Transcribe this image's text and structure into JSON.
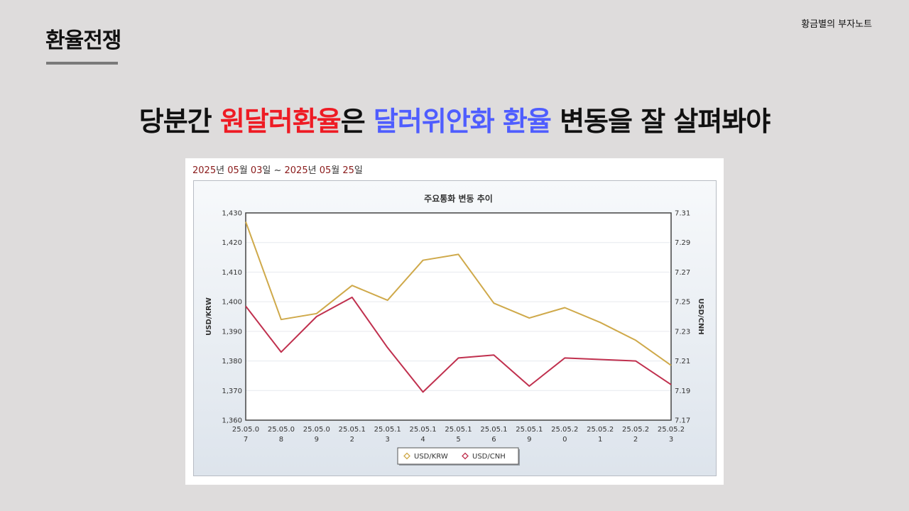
{
  "slide": {
    "title": "환율전쟁",
    "brand": "황금별의 부자노트",
    "headline": {
      "part1": "당분간 ",
      "part2": "원달러환율",
      "part3": "은 ",
      "part4": "달러위안화 환율",
      "part5": " 변동을 잘 살펴봐야"
    },
    "colors": {
      "red": "#ee1b24",
      "blue": "#4f5dff"
    }
  },
  "date_range": {
    "y1": "2025",
    "u1": "년 ",
    "m1": "05",
    "u2": "월 ",
    "d1": "03",
    "u3": "일 ~ ",
    "y2": "2025",
    "u4": "년 ",
    "m2": "05",
    "u5": "월 ",
    "d2": "25",
    "u6": "일"
  },
  "chart_data": {
    "type": "line",
    "title": "주요통화 변동 추이",
    "categories": [
      [
        "25.05.0",
        "7"
      ],
      [
        "25.05.0",
        "8"
      ],
      [
        "25.05.0",
        "9"
      ],
      [
        "25.05.1",
        "2"
      ],
      [
        "25.05.1",
        "3"
      ],
      [
        "25.05.1",
        "4"
      ],
      [
        "25.05.1",
        "5"
      ],
      [
        "25.05.1",
        "6"
      ],
      [
        "25.05.1",
        "9"
      ],
      [
        "25.05.2",
        "0"
      ],
      [
        "25.05.2",
        "1"
      ],
      [
        "25.05.2",
        "2"
      ],
      [
        "25.05.2",
        "3"
      ]
    ],
    "y_left": {
      "label": "USD/KRW",
      "ylim": [
        1360,
        1430
      ],
      "ticks": [
        "1,360",
        "1,370",
        "1,380",
        "1,390",
        "1,400",
        "1,410",
        "1,420",
        "1,430"
      ]
    },
    "y_right": {
      "label": "USD/CNH",
      "ylim": [
        7.17,
        7.31
      ],
      "ticks": [
        "7.17",
        "7.19",
        "7.21",
        "7.23",
        "7.25",
        "7.27",
        "7.29",
        "7.31"
      ]
    },
    "series": [
      {
        "name": "USD/KRW",
        "axis": "left",
        "color": "#cfa94a",
        "values": [
          1427,
          1394,
          1396,
          1405.5,
          1400.5,
          1414,
          1416,
          1399.5,
          1394.5,
          1398,
          1393,
          1387,
          1378.5
        ]
      },
      {
        "name": "USD/CNH",
        "axis": "right",
        "color": "#c0304e",
        "values": [
          7.247,
          7.216,
          7.24,
          7.253,
          7.219,
          7.189,
          7.212,
          7.214,
          7.193,
          7.212,
          7.211,
          7.21,
          7.194
        ]
      }
    ],
    "legend": "bottom-center",
    "grid": true
  }
}
